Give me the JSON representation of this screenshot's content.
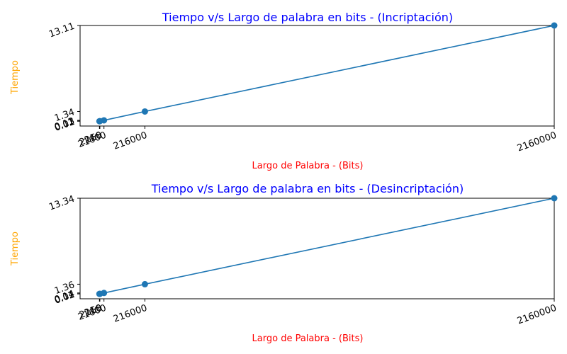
{
  "colors": {
    "title": "#0000ff",
    "xlabel": "#ff0000",
    "ylabel": "#ffa500",
    "series": "#1f77b4"
  },
  "chart_data": [
    {
      "type": "line",
      "title": "Tiempo v/s Largo de palabra en bits - (Incriptación)",
      "xlabel": "Largo de Palabra - (Bits)",
      "ylabel": "Tiempo",
      "x": [
        216,
        2160,
        21600,
        216000,
        2160000
      ],
      "series": [
        {
          "values": [
            0.01,
            0.02,
            0.13,
            1.34,
            13.11
          ]
        }
      ],
      "xticks": [
        "216",
        "2160",
        "21600",
        "216000",
        "2160000"
      ],
      "yticks": [
        "0.01",
        "0.02",
        "0.13",
        "1.34",
        "13.11"
      ],
      "xlim": [
        -91773,
        2160000
      ],
      "ylim": [
        -0.65,
        13.11
      ],
      "grid": false,
      "markers": "circle"
    },
    {
      "type": "line",
      "title": "Tiempo v/s Largo de palabra en bits - (Desincriptación)",
      "xlabel": "Largo de Palabra - (Bits)",
      "ylabel": "Tiempo",
      "x": [
        216,
        2160,
        21600,
        216000,
        2160000
      ],
      "series": [
        {
          "values": [
            0.01,
            0.02,
            0.14,
            1.36,
            13.34
          ]
        }
      ],
      "xticks": [
        "216",
        "2160",
        "21600",
        "216000",
        "2160000"
      ],
      "yticks": [
        "0.01",
        "0.02",
        "0.14",
        "1.36",
        "13.34"
      ],
      "xlim": [
        -91773,
        2160000
      ],
      "ylim": [
        -0.67,
        13.34
      ],
      "grid": false,
      "markers": "circle"
    }
  ]
}
